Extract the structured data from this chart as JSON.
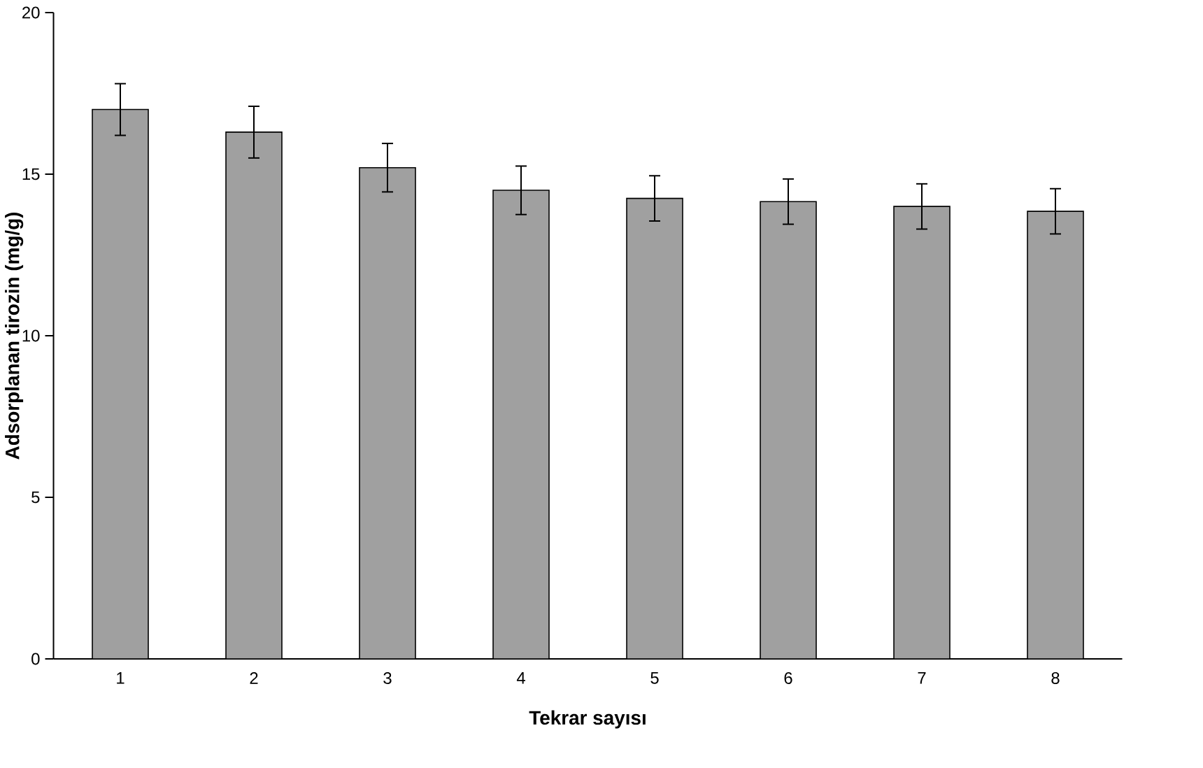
{
  "chart_data": {
    "type": "bar",
    "xlabel": "Tekrar sayısı",
    "ylabel": "Adsorplanan tirozin (mg/g)",
    "categories": [
      "1",
      "2",
      "3",
      "4",
      "5",
      "6",
      "7",
      "8"
    ],
    "values": [
      17.0,
      16.3,
      15.2,
      14.5,
      14.25,
      14.15,
      14.0,
      13.85
    ],
    "errors": [
      0.8,
      0.8,
      0.75,
      0.75,
      0.7,
      0.7,
      0.7,
      0.7
    ],
    "color": "#a0a0a0",
    "ylim": [
      0,
      20
    ],
    "yticks": [
      0,
      5,
      10,
      15,
      20
    ],
    "grid": false
  }
}
